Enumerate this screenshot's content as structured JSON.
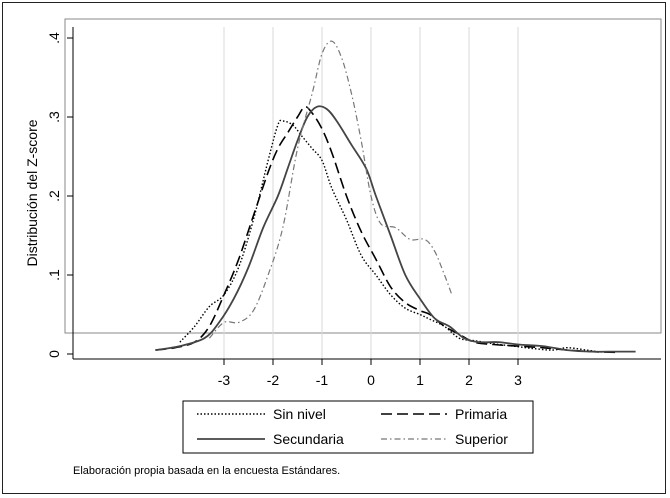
{
  "chart_data": {
    "type": "line",
    "title": "",
    "xlabel": "",
    "ylabel": "Distribución del Z-score",
    "xlim": [
      -5.2,
      5.5
    ],
    "ylim": [
      0,
      0.4
    ],
    "x_ticks": [
      -3,
      -2,
      -1,
      0,
      1,
      2,
      3
    ],
    "x_tick_labels": [
      "-3",
      "-2",
      "-1",
      "0",
      "1",
      "2",
      "3"
    ],
    "y_ticks": [
      0,
      0.1,
      0.2,
      0.3,
      0.4
    ],
    "y_tick_labels": [
      "0",
      ".1",
      ".2",
      ".3",
      ".4"
    ],
    "grid": "vertical",
    "legend_position": "bottom",
    "series": [
      {
        "name": "Sin nivel",
        "style": "dotted",
        "points": [
          [
            -3.9,
            0.015
          ],
          [
            -3.6,
            0.035
          ],
          [
            -3.3,
            0.06
          ],
          [
            -3.0,
            0.075
          ],
          [
            -2.7,
            0.11
          ],
          [
            -2.4,
            0.17
          ],
          [
            -2.1,
            0.245
          ],
          [
            -1.9,
            0.29
          ],
          [
            -1.8,
            0.295
          ],
          [
            -1.6,
            0.29
          ],
          [
            -1.4,
            0.275
          ],
          [
            -1.2,
            0.26
          ],
          [
            -1.0,
            0.245
          ],
          [
            -0.8,
            0.21
          ],
          [
            -0.5,
            0.17
          ],
          [
            -0.2,
            0.125
          ],
          [
            0.1,
            0.1
          ],
          [
            0.4,
            0.075
          ],
          [
            0.7,
            0.058
          ],
          [
            1.0,
            0.05
          ],
          [
            1.2,
            0.044
          ],
          [
            1.5,
            0.035
          ],
          [
            1.8,
            0.02
          ],
          [
            2.1,
            0.017
          ],
          [
            2.5,
            0.013
          ],
          [
            2.9,
            0.01
          ],
          [
            3.3,
            0.007
          ],
          [
            3.7,
            0.005
          ],
          [
            4.0,
            0.008
          ],
          [
            4.4,
            0.005
          ],
          [
            4.7,
            0.002
          ]
        ]
      },
      {
        "name": "Primaria",
        "style": "dashed",
        "points": [
          [
            -4.4,
            0.005
          ],
          [
            -4.0,
            0.008
          ],
          [
            -3.6,
            0.015
          ],
          [
            -3.3,
            0.035
          ],
          [
            -3.0,
            0.075
          ],
          [
            -2.7,
            0.12
          ],
          [
            -2.4,
            0.175
          ],
          [
            -2.1,
            0.23
          ],
          [
            -1.9,
            0.26
          ],
          [
            -1.7,
            0.28
          ],
          [
            -1.5,
            0.3
          ],
          [
            -1.35,
            0.313
          ],
          [
            -1.2,
            0.305
          ],
          [
            -1.0,
            0.285
          ],
          [
            -0.8,
            0.255
          ],
          [
            -0.5,
            0.2
          ],
          [
            -0.2,
            0.155
          ],
          [
            0.1,
            0.12
          ],
          [
            0.4,
            0.085
          ],
          [
            0.7,
            0.065
          ],
          [
            1.0,
            0.055
          ],
          [
            1.2,
            0.05
          ],
          [
            1.5,
            0.035
          ],
          [
            1.8,
            0.025
          ],
          [
            2.1,
            0.015
          ],
          [
            2.5,
            0.012
          ],
          [
            3.0,
            0.01
          ],
          [
            3.5,
            0.008
          ],
          [
            4.0,
            0.005
          ],
          [
            4.5,
            0.003
          ],
          [
            5.0,
            0.002
          ]
        ]
      },
      {
        "name": "Secundaria",
        "style": "solid",
        "points": [
          [
            -4.4,
            0.005
          ],
          [
            -3.9,
            0.01
          ],
          [
            -3.4,
            0.02
          ],
          [
            -3.1,
            0.04
          ],
          [
            -2.8,
            0.07
          ],
          [
            -2.5,
            0.11
          ],
          [
            -2.2,
            0.16
          ],
          [
            -1.9,
            0.2
          ],
          [
            -1.7,
            0.235
          ],
          [
            -1.5,
            0.27
          ],
          [
            -1.3,
            0.3
          ],
          [
            -1.1,
            0.313
          ],
          [
            -0.9,
            0.31
          ],
          [
            -0.7,
            0.295
          ],
          [
            -0.4,
            0.265
          ],
          [
            -0.1,
            0.235
          ],
          [
            0.1,
            0.2
          ],
          [
            0.4,
            0.15
          ],
          [
            0.7,
            0.1
          ],
          [
            1.0,
            0.07
          ],
          [
            1.3,
            0.045
          ],
          [
            1.6,
            0.035
          ],
          [
            1.9,
            0.02
          ],
          [
            2.2,
            0.015
          ],
          [
            2.6,
            0.015
          ],
          [
            3.0,
            0.012
          ],
          [
            3.5,
            0.01
          ],
          [
            4.0,
            0.005
          ],
          [
            4.5,
            0.003
          ],
          [
            5.0,
            0.003
          ],
          [
            5.4,
            0.003
          ]
        ]
      },
      {
        "name": "Superior",
        "style": "dashdot",
        "points": [
          [
            -3.3,
            0.02
          ],
          [
            -3.0,
            0.04
          ],
          [
            -2.7,
            0.04
          ],
          [
            -2.4,
            0.055
          ],
          [
            -2.1,
            0.1
          ],
          [
            -1.8,
            0.16
          ],
          [
            -1.5,
            0.26
          ],
          [
            -1.2,
            0.33
          ],
          [
            -1.0,
            0.38
          ],
          [
            -0.8,
            0.396
          ],
          [
            -0.6,
            0.375
          ],
          [
            -0.4,
            0.33
          ],
          [
            -0.2,
            0.27
          ],
          [
            0.0,
            0.2
          ],
          [
            0.2,
            0.165
          ],
          [
            0.5,
            0.16
          ],
          [
            0.8,
            0.145
          ],
          [
            1.1,
            0.145
          ],
          [
            1.3,
            0.13
          ],
          [
            1.5,
            0.1
          ],
          [
            1.65,
            0.075
          ]
        ]
      }
    ]
  },
  "legend": {
    "items": [
      "Sin nivel",
      "Primaria",
      "Secundaria",
      "Superior"
    ]
  },
  "source_note": "Elaboración propia basada en la encuesta Estándares."
}
